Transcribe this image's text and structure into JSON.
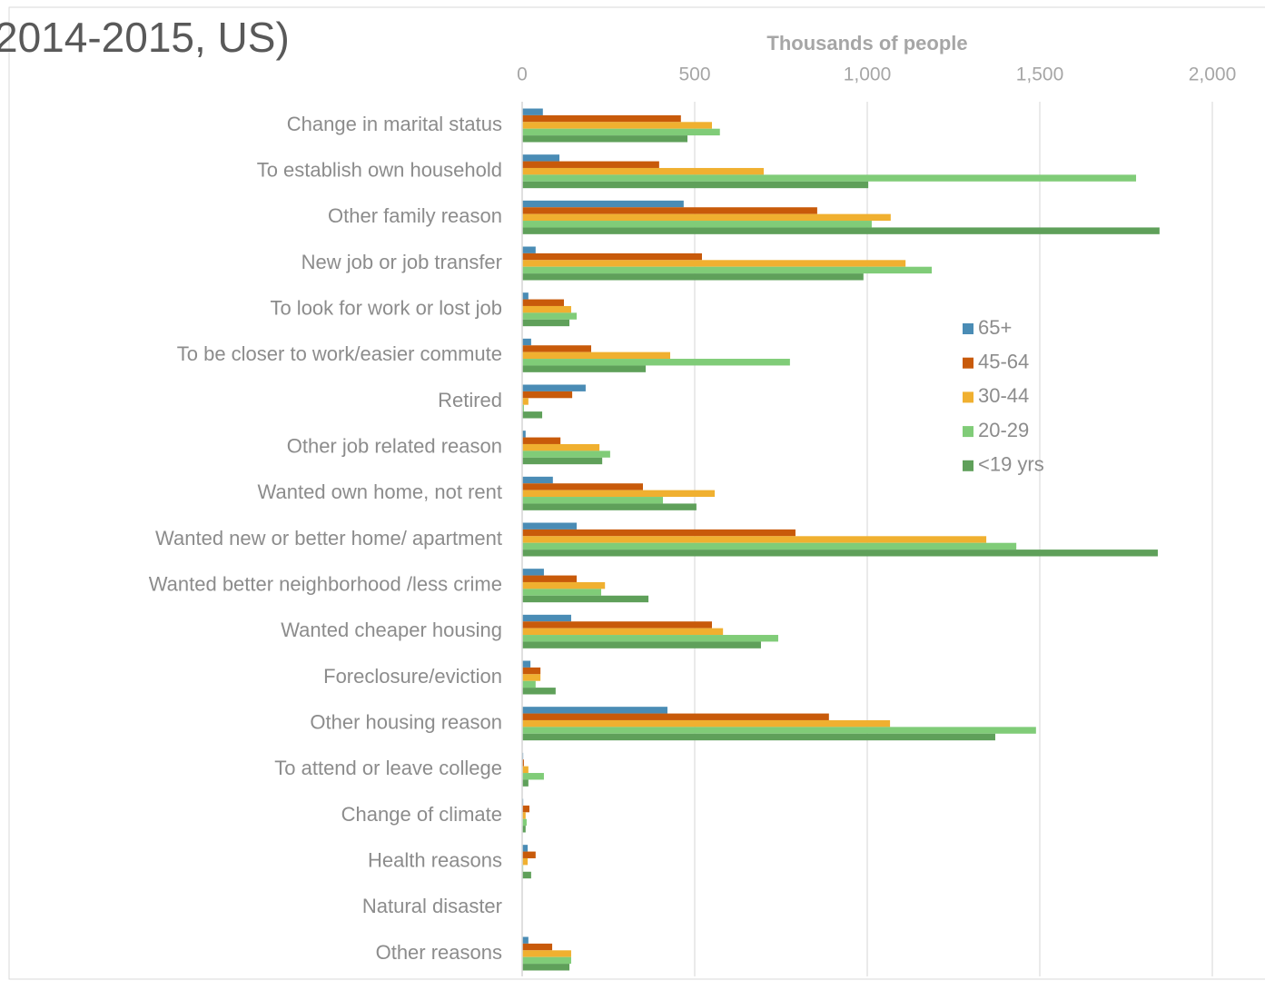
{
  "chart_data": {
    "type": "hbar",
    "title": "2014-2015, US)",
    "x_label": "Thousands of people",
    "categories": [
      "Change in marital status",
      "To establish own household",
      "Other family reason",
      "New job or job transfer",
      "To look for work or lost job",
      "To be closer to work/easier commute",
      "Retired",
      "Other job related reason",
      "Wanted own home, not rent",
      "Wanted new or better home/ apartment",
      "Wanted better neighborhood /less crime",
      "Wanted cheaper housing",
      "Foreclosure/eviction",
      "Other housing reason",
      "To attend or leave college",
      "Change of climate",
      "Health reasons",
      "Natural disaster",
      "Other reasons"
    ],
    "series": [
      {
        "name": "65+",
        "color": "#4a8cb5",
        "values": [
          60,
          108,
          468,
          39,
          18,
          26,
          184,
          10,
          89,
          158,
          63,
          142,
          24,
          421,
          3,
          3,
          16,
          0,
          18
        ]
      },
      {
        "name": "45-64",
        "color": "#c85a0a",
        "values": [
          460,
          397,
          855,
          521,
          121,
          200,
          145,
          111,
          350,
          792,
          158,
          550,
          53,
          889,
          5,
          21,
          39,
          0,
          87
        ]
      },
      {
        "name": "30-44",
        "color": "#f0b030",
        "values": [
          550,
          700,
          1068,
          1111,
          142,
          429,
          18,
          224,
          558,
          1345,
          240,
          582,
          53,
          1066,
          18,
          10,
          16,
          0,
          142
        ]
      },
      {
        "name": "20-29",
        "color": "#80cc78",
        "values": [
          573,
          1779,
          1013,
          1187,
          158,
          776,
          5,
          255,
          408,
          1432,
          229,
          742,
          39,
          1489,
          63,
          13,
          3,
          0,
          142
        ]
      },
      {
        "name": "<19 yrs",
        "color": "#5fa05a",
        "values": [
          479,
          1003,
          1847,
          989,
          137,
          358,
          58,
          232,
          505,
          1842,
          366,
          692,
          97,
          1371,
          18,
          10,
          26,
          0,
          137
        ]
      }
    ],
    "xlim": [
      0,
      2000
    ],
    "xticks": [
      0,
      500,
      {
        "value": 1000,
        "label": "1,000"
      },
      {
        "value": 1500,
        "label": "1,500"
      },
      {
        "value": 2000,
        "label": "2,000"
      }
    ],
    "grid": true,
    "legend": "right"
  }
}
